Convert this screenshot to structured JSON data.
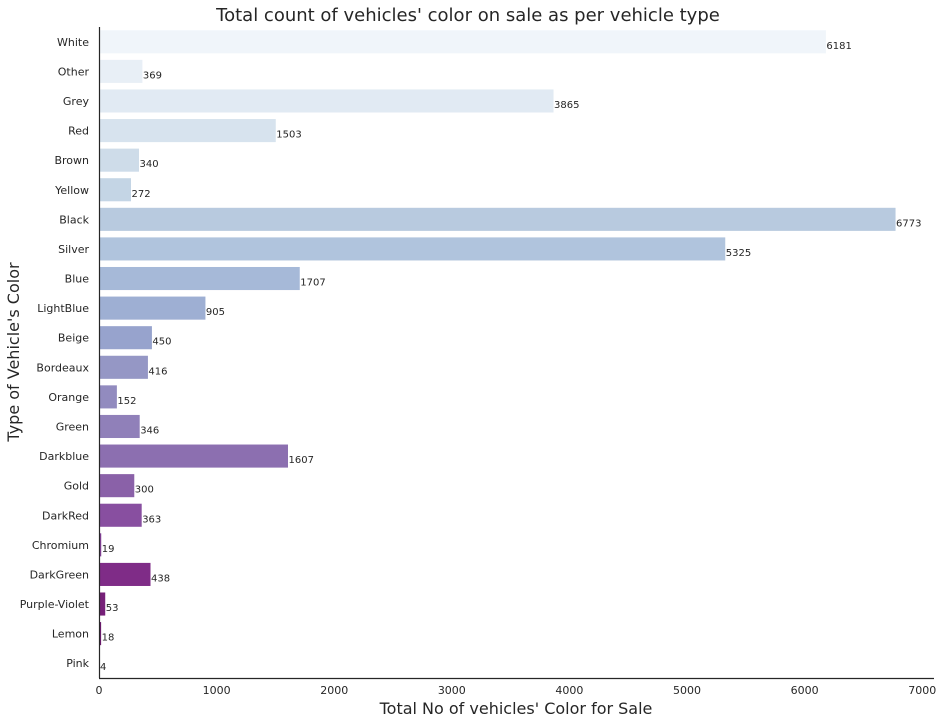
{
  "chart_data": {
    "type": "bar",
    "orientation": "horizontal",
    "title": "Total count of vehicles' color on sale as per vehicle type",
    "xlabel": "Total No of vehicles' Color for Sale",
    "ylabel": "Type of Vehicle's Color",
    "xlim": [
      0,
      7100
    ],
    "xticks": [
      0,
      1000,
      2000,
      3000,
      4000,
      5000,
      6000,
      7000
    ],
    "grid": false,
    "palette": "BuPu",
    "categories": [
      "White",
      "Other",
      "Grey",
      "Red",
      "Brown",
      "Yellow",
      "Black",
      "Silver",
      "Blue",
      "LightBlue",
      "Beige",
      "Bordeaux",
      "Orange",
      "Green",
      "Darkblue",
      "Gold",
      "DarkRed",
      "Chromium",
      "DarkGreen",
      "Purple-Violet",
      "Lemon",
      "Pink"
    ],
    "values": [
      6181,
      369,
      3865,
      1503,
      340,
      272,
      6773,
      5325,
      1707,
      905,
      450,
      416,
      152,
      346,
      1607,
      300,
      363,
      19,
      438,
      53,
      18,
      4
    ],
    "colors": [
      "#f0f5fa",
      "#e8eff6",
      "#e1eaf3",
      "#d7e3ee",
      "#cedce9",
      "#c4d5e5",
      "#b8cadf",
      "#b0c4dd",
      "#a6b9d8",
      "#9eafd3",
      "#97a3cd",
      "#9597c5",
      "#928bbf",
      "#9080b9",
      "#8c6fb0",
      "#8a61a8",
      "#884fa0",
      "#86409a",
      "#7f2c87",
      "#762078",
      "#6f1870",
      "#660f66"
    ]
  }
}
